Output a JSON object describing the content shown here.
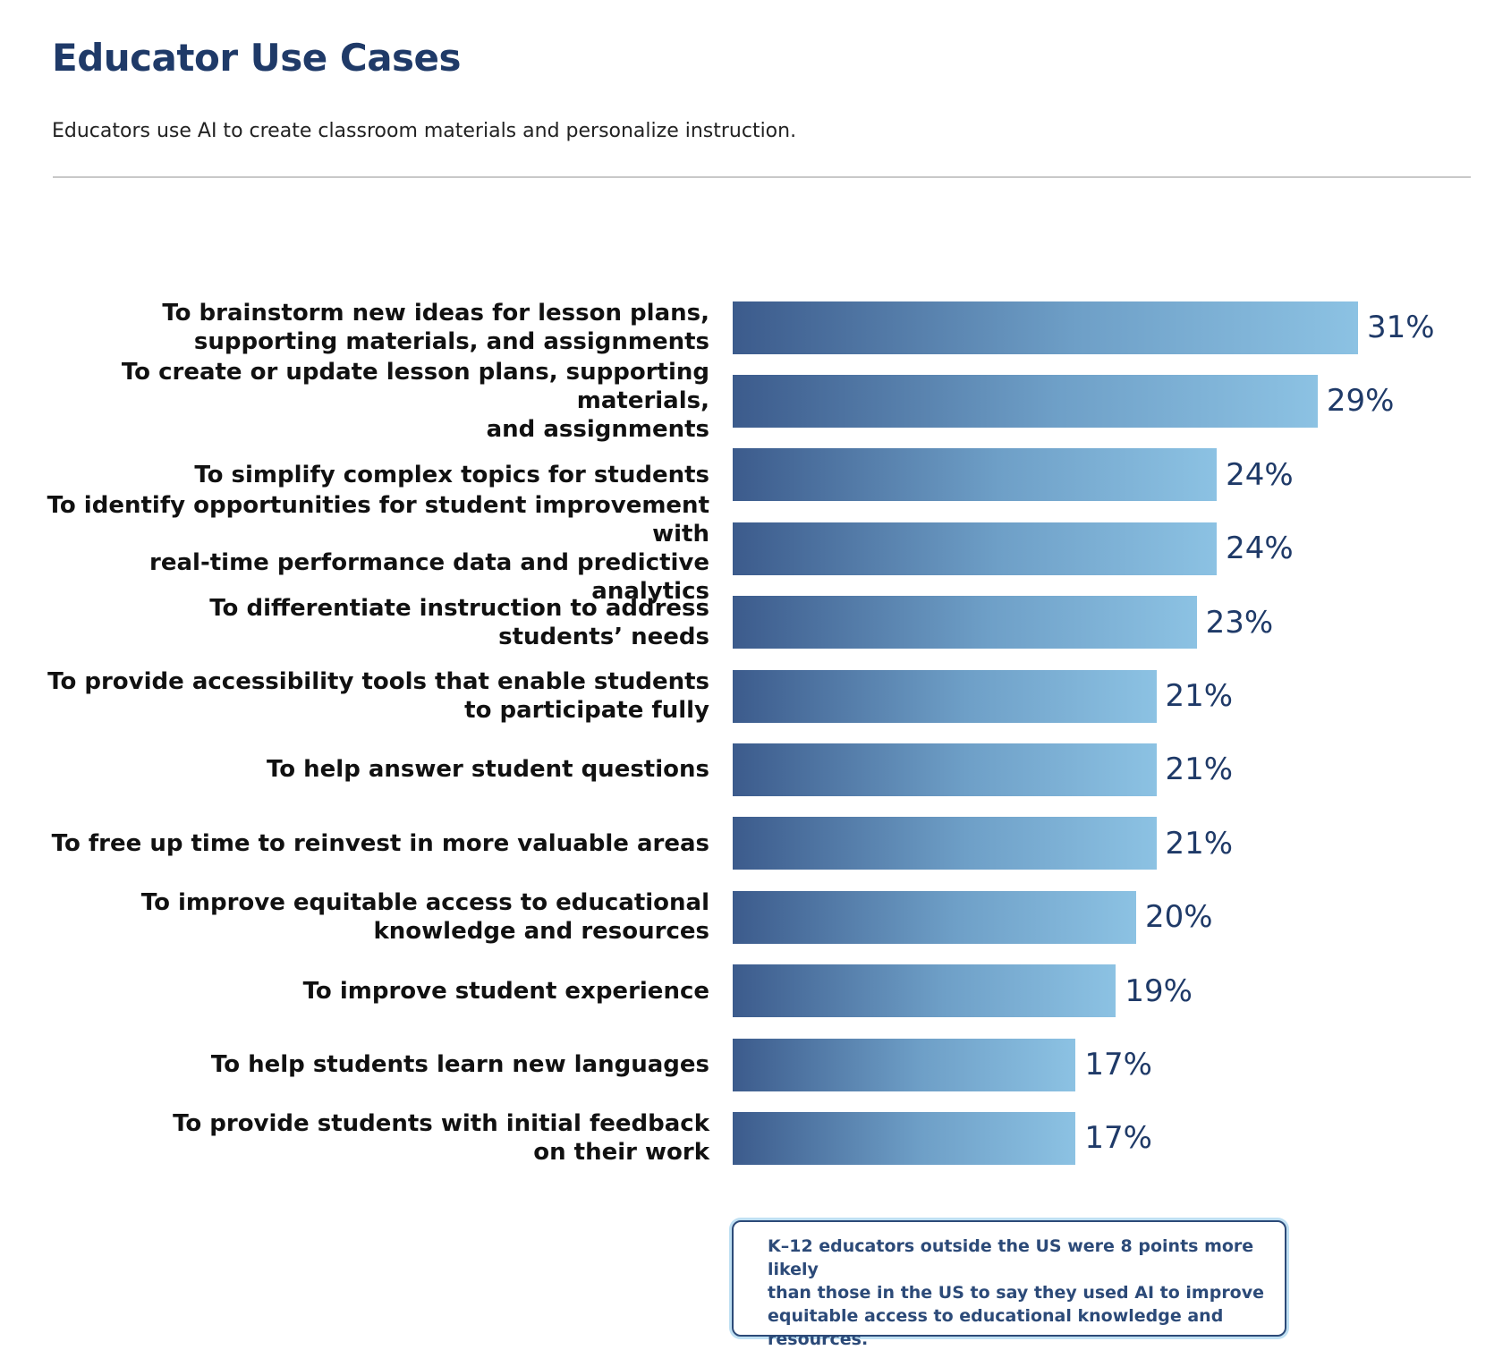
{
  "chart_data": {
    "type": "bar",
    "orientation": "horizontal",
    "title": "Educator Use Cases",
    "subtitle": "Educators use AI to create classroom materials and personalize instruction.",
    "categories": [
      "To brainstorm new ideas for lesson plans,\nsupporting materials, and assignments",
      "To create or update lesson plans, supporting materials,\nand assignments",
      "To simplify complex topics for students",
      "To identify opportunities for student improvement with\nreal-time performance data and predictive analytics",
      "To differentiate instruction to address\nstudents’ needs",
      "To provide accessibility tools that enable students\nto participate fully",
      "To help answer student questions",
      "To free up time to reinvest in more valuable areas",
      "To improve equitable access to educational\nknowledge and resources",
      "To improve student experience",
      "To help students learn new languages",
      "To provide students with initial feedback\non their work"
    ],
    "values": [
      31,
      29,
      24,
      24,
      23,
      21,
      21,
      21,
      20,
      19,
      17,
      17
    ],
    "value_labels": [
      "31%",
      "29%",
      "24%",
      "24%",
      "23%",
      "21%",
      "21%",
      "21%",
      "20%",
      "19%",
      "17%",
      "17%"
    ],
    "annotation": "K–12 educators outside the US were 8 points more likely\nthan those in the US to say they used AI to improve\nequitable access to educational knowledge and resources."
  }
}
